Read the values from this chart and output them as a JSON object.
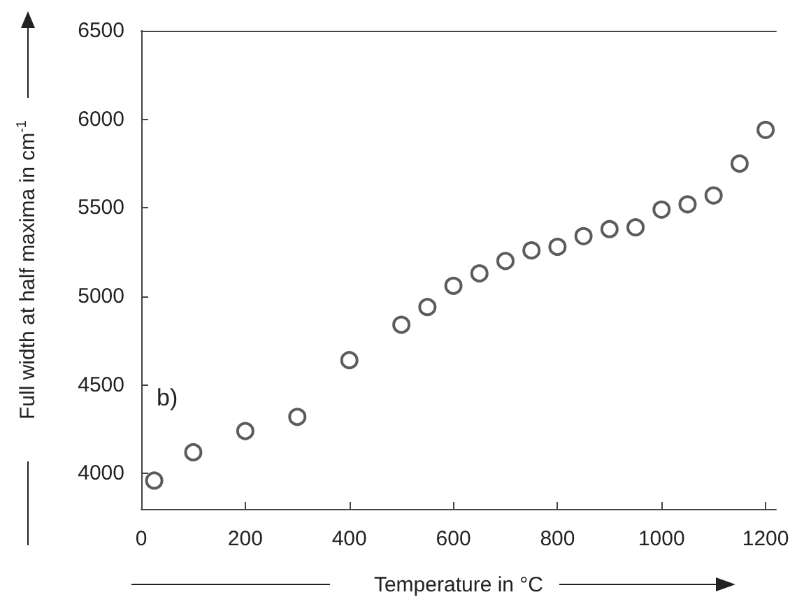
{
  "chart_data": {
    "type": "scatter",
    "xlabel": "Temperature in °C",
    "ylabel": "Full width at half maxima in cm$^{-1}$",
    "annotations": [
      "b)"
    ],
    "x": [
      25,
      100,
      200,
      300,
      400,
      500,
      550,
      600,
      650,
      700,
      750,
      800,
      850,
      900,
      950,
      1000,
      1050,
      1100,
      1150,
      1200
    ],
    "series": [
      {
        "color": "#333333",
        "values": [
          3960,
          4120,
          4240,
          4320,
          4640,
          4840,
          4940,
          5060,
          5130,
          5200,
          5260,
          5280,
          5340,
          5380,
          5390,
          5490,
          5520,
          5570,
          5750,
          5940
        ]
      }
    ],
    "xlim": [
      0,
      1220
    ],
    "xticks": [
      0,
      200,
      400,
      600,
      800,
      1000,
      1200
    ],
    "ylim": [
      3800,
      6500
    ],
    "yticks": [
      4000,
      4500,
      5000,
      5500,
      6000,
      6500
    ],
    "marker": "circle"
  }
}
